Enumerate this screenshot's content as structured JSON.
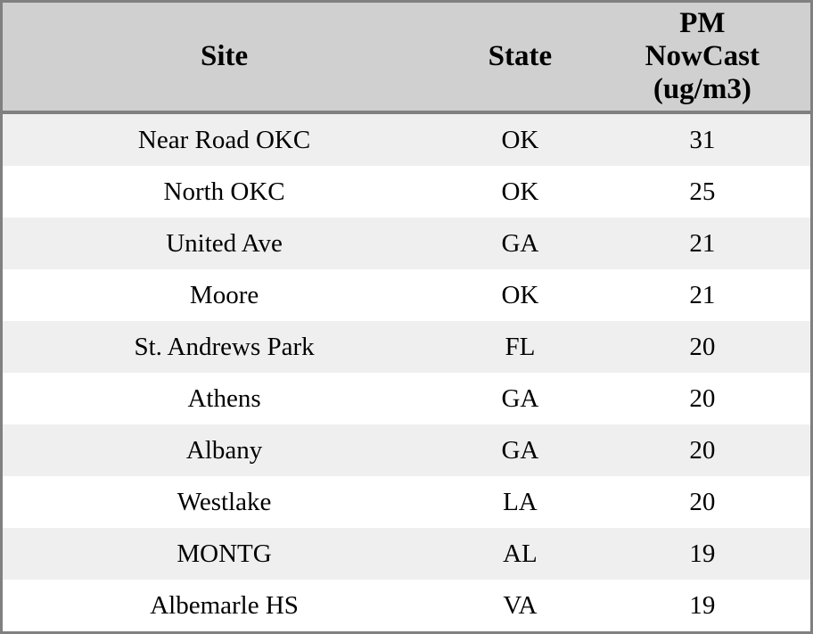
{
  "table": {
    "columns": [
      {
        "key": "site",
        "label": "Site"
      },
      {
        "key": "state",
        "label": "State"
      },
      {
        "key": "pm_nowcast",
        "label": "PM\nNowCast\n(ug/m3)"
      }
    ],
    "rows": [
      {
        "site": "Near Road OKC",
        "state": "OK",
        "pm_nowcast": "31"
      },
      {
        "site": "North OKC",
        "state": "OK",
        "pm_nowcast": "25"
      },
      {
        "site": "United Ave",
        "state": "GA",
        "pm_nowcast": "21"
      },
      {
        "site": "Moore",
        "state": "OK",
        "pm_nowcast": "21"
      },
      {
        "site": "St. Andrews Park",
        "state": "FL",
        "pm_nowcast": "20"
      },
      {
        "site": "Athens",
        "state": "GA",
        "pm_nowcast": "20"
      },
      {
        "site": "Albany",
        "state": "GA",
        "pm_nowcast": "20"
      },
      {
        "site": "Westlake",
        "state": "LA",
        "pm_nowcast": "20"
      },
      {
        "site": "MONTG",
        "state": "AL",
        "pm_nowcast": "19"
      },
      {
        "site": "Albemarle HS",
        "state": "VA",
        "pm_nowcast": "19"
      }
    ]
  },
  "colors": {
    "header_bg": "#d0d0d0",
    "row_alt_bg": "#efefef",
    "row_bg": "#ffffff",
    "border": "#808080",
    "text": "#000000"
  },
  "chart_data": {
    "type": "table",
    "title": "",
    "columns": [
      "Site",
      "State",
      "PM NowCast (ug/m3)"
    ],
    "rows": [
      [
        "Near Road OKC",
        "OK",
        31
      ],
      [
        "North OKC",
        "OK",
        25
      ],
      [
        "United Ave",
        "GA",
        21
      ],
      [
        "Moore",
        "OK",
        21
      ],
      [
        "St. Andrews Park",
        "FL",
        20
      ],
      [
        "Athens",
        "GA",
        20
      ],
      [
        "Albany",
        "GA",
        20
      ],
      [
        "Westlake",
        "LA",
        20
      ],
      [
        "MONTG",
        "AL",
        19
      ],
      [
        "Albemarle HS",
        "VA",
        19
      ]
    ],
    "layout": {
      "header_row": true,
      "row_striping": true,
      "grid": "off",
      "alignment": "center"
    }
  }
}
